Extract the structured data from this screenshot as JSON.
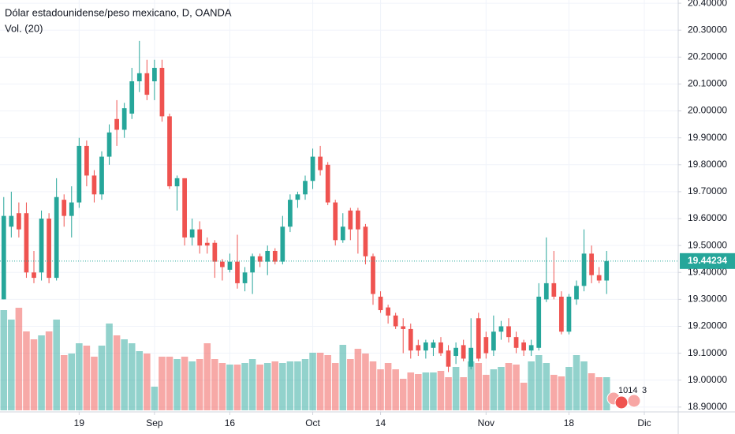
{
  "chart_data": {
    "type": "candlestick",
    "title": "Dólar estadounidense/peso mexicano, D, OANDA",
    "volume_title": "Vol. (20)",
    "up_color": "#26a69a",
    "down_color": "#ef5350",
    "grid": true,
    "xlim": [
      -0.5,
      89.5
    ],
    "xticks": [
      {
        "value": 10,
        "label": "19"
      },
      {
        "value": 20,
        "label": "Sep"
      },
      {
        "value": 30,
        "label": "16"
      },
      {
        "value": 41,
        "label": "Oct"
      },
      {
        "value": 50,
        "label": "14"
      },
      {
        "value": 64,
        "label": "Nov"
      },
      {
        "value": 75,
        "label": "18"
      },
      {
        "value": 85,
        "label": "Dic"
      }
    ],
    "ylim": [
      18.882,
      20.412
    ],
    "yticks": [
      {
        "value": 18.9,
        "label": "18.90000"
      },
      {
        "value": 19.0,
        "label": "19.00000"
      },
      {
        "value": 19.1,
        "label": "19.10000"
      },
      {
        "value": 19.2,
        "label": "19.20000"
      },
      {
        "value": 19.3,
        "label": "19.30000"
      },
      {
        "value": 19.4,
        "label": "19.40000"
      },
      {
        "value": 19.5,
        "label": "19.50000"
      },
      {
        "value": 19.6,
        "label": "19.60000"
      },
      {
        "value": 19.7,
        "label": "19.70000"
      },
      {
        "value": 19.8,
        "label": "19.80000"
      },
      {
        "value": 19.9,
        "label": "19.90000"
      },
      {
        "value": 20.0,
        "label": "20.00000"
      },
      {
        "value": 20.1,
        "label": "20.10000"
      },
      {
        "value": 20.2,
        "label": "20.20000"
      },
      {
        "value": 20.3,
        "label": "20.30000"
      },
      {
        "value": 20.4,
        "label": "20.40000"
      }
    ],
    "last_price": 19.44234,
    "open": [
      19.3,
      19.57,
      19.62,
      19.62,
      19.4,
      19.4,
      19.6,
      19.38,
      19.67,
      19.61,
      19.66,
      19.87,
      19.76,
      19.69,
      19.83,
      19.97,
      19.93,
      19.99,
      20.11,
      20.14,
      20.11,
      20.16,
      19.98,
      19.72,
      19.75,
      19.53,
      19.56,
      19.51,
      19.51,
      19.44,
      19.41,
      19.44,
      19.36,
      19.4,
      19.46,
      19.44,
      19.48,
      19.44,
      19.57,
      19.67,
      19.69,
      19.74,
      19.83,
      19.8,
      19.66,
      19.52,
      19.63,
      19.63,
      19.57,
      19.46,
      19.31,
      19.27,
      19.24,
      19.2,
      19.19,
      19.13,
      19.11,
      19.12,
      19.14,
      19.11,
      19.09,
      19.13,
      19.05,
      19.23,
      19.16,
      19.11,
      19.18,
      19.2,
      19.16,
      19.14,
      19.11,
      19.12,
      19.3,
      19.36,
      19.31,
      19.18,
      19.3,
      19.35,
      19.47,
      19.39,
      19.37
    ],
    "high": [
      19.68,
      19.7,
      19.66,
      19.66,
      19.48,
      19.63,
      19.62,
      19.75,
      19.69,
      19.72,
      19.9,
      19.89,
      19.78,
      19.85,
      19.95,
      20.04,
      20.03,
      20.16,
      20.26,
      20.19,
      20.19,
      20.19,
      19.99,
      19.76,
      19.75,
      19.6,
      19.59,
      19.53,
      19.52,
      19.45,
      19.47,
      19.54,
      19.42,
      19.47,
      19.47,
      19.5,
      19.49,
      19.61,
      19.69,
      19.7,
      19.76,
      19.86,
      19.87,
      19.81,
      19.67,
      19.62,
      19.64,
      19.64,
      19.58,
      19.47,
      19.33,
      19.28,
      19.25,
      19.23,
      19.21,
      19.15,
      19.15,
      19.15,
      19.16,
      19.13,
      19.14,
      19.15,
      19.23,
      19.25,
      19.18,
      19.24,
      19.22,
      19.23,
      19.18,
      19.15,
      19.15,
      19.36,
      19.53,
      19.48,
      19.33,
      19.32,
      19.37,
      19.56,
      19.5,
      19.42,
      19.48
    ],
    "low": [
      19.3,
      19.53,
      19.53,
      19.38,
      19.36,
      19.37,
      19.36,
      19.37,
      19.57,
      19.53,
      19.64,
      19.72,
      19.66,
      19.67,
      19.8,
      19.87,
      19.9,
      19.97,
      20.07,
      20.04,
      20.04,
      19.96,
      19.71,
      19.63,
      19.5,
      19.5,
      19.47,
      19.47,
      19.38,
      19.37,
      19.4,
      19.34,
      19.33,
      19.32,
      19.42,
      19.39,
      19.43,
      19.43,
      19.55,
      19.64,
      19.67,
      19.71,
      19.76,
      19.65,
      19.5,
      19.51,
      19.52,
      19.47,
      19.43,
      19.28,
      19.25,
      19.21,
      19.19,
      19.1,
      19.08,
      19.09,
      19.08,
      19.09,
      19.09,
      19.03,
      19.06,
      19.07,
      19.04,
      19.07,
      19.08,
      19.09,
      19.15,
      19.14,
      19.1,
      19.09,
      19.09,
      19.11,
      19.29,
      19.3,
      19.17,
      19.17,
      19.28,
      19.33,
      19.36,
      19.36,
      19.32
    ],
    "close": [
      19.61,
      19.61,
      19.56,
      19.4,
      19.38,
      19.6,
      19.38,
      19.68,
      19.61,
      19.66,
      19.87,
      19.76,
      19.69,
      19.83,
      19.92,
      19.93,
      20.01,
      20.11,
      20.14,
      20.06,
      20.16,
      19.98,
      19.72,
      19.75,
      19.53,
      19.56,
      19.5,
      19.5,
      19.44,
      19.42,
      19.44,
      19.36,
      19.4,
      19.46,
      19.44,
      19.48,
      19.44,
      19.57,
      19.67,
      19.69,
      19.74,
      19.83,
      19.78,
      19.66,
      19.52,
      19.57,
      19.56,
      19.56,
      19.46,
      19.32,
      19.26,
      19.24,
      19.2,
      19.19,
      19.11,
      19.11,
      19.14,
      19.14,
      19.1,
      19.05,
      19.12,
      19.08,
      19.12,
      19.08,
      19.1,
      19.18,
      19.2,
      19.16,
      19.12,
      19.11,
      19.13,
      19.31,
      19.36,
      19.31,
      19.18,
      19.31,
      19.35,
      19.47,
      19.39,
      19.37,
      19.44234
    ],
    "volume": [
      127,
      115,
      130,
      100,
      90,
      95,
      100,
      115,
      70,
      72,
      85,
      82,
      68,
      82,
      110,
      95,
      90,
      85,
      75,
      72,
      30,
      68,
      68,
      65,
      68,
      62,
      65,
      85,
      65,
      60,
      58,
      58,
      60,
      65,
      58,
      60,
      62,
      60,
      62,
      62,
      65,
      73,
      73,
      70,
      60,
      83,
      65,
      78,
      72,
      62,
      52,
      60,
      52,
      40,
      48,
      46,
      48,
      48,
      50,
      42,
      55,
      42,
      62,
      60,
      45,
      52,
      55,
      60,
      58,
      35,
      62,
      70,
      60,
      45,
      43,
      55,
      70,
      62,
      47,
      42,
      42
    ],
    "events": [
      "1014",
      "3"
    ]
  }
}
